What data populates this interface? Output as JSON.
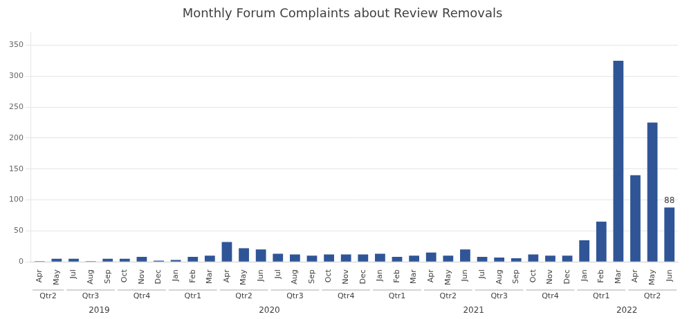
{
  "chart_data": {
    "type": "bar",
    "title": "Monthly Forum Complaints about Review Removals",
    "color": "#2F5597",
    "categories": [
      "Apr",
      "May",
      "Jul",
      "Aug",
      "Sep",
      "Oct",
      "Nov",
      "Dec",
      "Jan",
      "Feb",
      "Mar",
      "Apr",
      "May",
      "Jun",
      "Jul",
      "Aug",
      "Sep",
      "Oct",
      "Nov",
      "Dec",
      "Jan",
      "Feb",
      "Mar",
      "Apr",
      "May",
      "Jun",
      "Jul",
      "Aug",
      "Sep",
      "Oct",
      "Nov",
      "Dec",
      "Jan",
      "Feb",
      "Mar",
      "Apr",
      "May",
      "Jun"
    ],
    "values": [
      1,
      5,
      5,
      1,
      5,
      5,
      8,
      2,
      3,
      8,
      10,
      32,
      22,
      20,
      13,
      12,
      10,
      12,
      12,
      12,
      13,
      8,
      10,
      15,
      10,
      20,
      8,
      7,
      6,
      12,
      10,
      10,
      35,
      65,
      325,
      140,
      225,
      88
    ],
    "annotations": [
      {
        "text": "88",
        "index": 37
      }
    ],
    "quarters": [
      {
        "label": "Qtr2",
        "start": 0,
        "end": 2
      },
      {
        "label": "Qtr3",
        "start": 2,
        "end": 5
      },
      {
        "label": "Qtr4",
        "start": 5,
        "end": 8
      },
      {
        "label": "Qtr1",
        "start": 8,
        "end": 11
      },
      {
        "label": "Qtr2",
        "start": 11,
        "end": 14
      },
      {
        "label": "Qtr3",
        "start": 14,
        "end": 17
      },
      {
        "label": "Qtr4",
        "start": 17,
        "end": 20
      },
      {
        "label": "Qtr1",
        "start": 20,
        "end": 23
      },
      {
        "label": "Qtr2",
        "start": 23,
        "end": 26
      },
      {
        "label": "Qtr3",
        "start": 26,
        "end": 29
      },
      {
        "label": "Qtr4",
        "start": 29,
        "end": 32
      },
      {
        "label": "Qtr1",
        "start": 32,
        "end": 35
      },
      {
        "label": "Qtr2",
        "start": 35,
        "end": 38
      }
    ],
    "years": [
      {
        "label": "2019",
        "start": 0,
        "end": 8
      },
      {
        "label": "2020",
        "start": 8,
        "end": 20
      },
      {
        "label": "2021",
        "start": 20,
        "end": 32
      },
      {
        "label": "2022",
        "start": 32,
        "end": 38
      }
    ],
    "ylim": [
      0,
      370
    ],
    "yticks": [
      0,
      50,
      100,
      150,
      200,
      250,
      300,
      350
    ],
    "grid": true
  }
}
